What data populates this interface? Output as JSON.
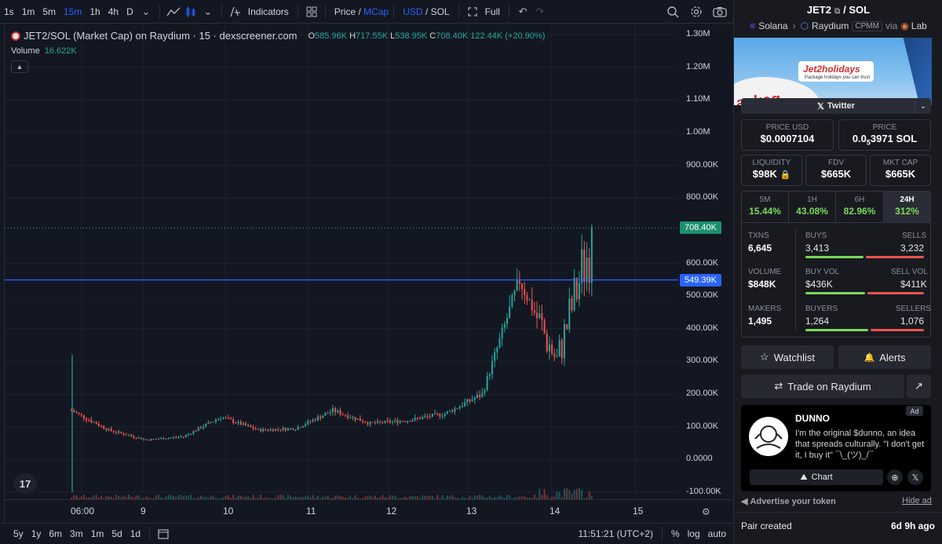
{
  "toolbar": {
    "timeframes": [
      "1s",
      "1m",
      "5m",
      "15m",
      "1h",
      "4h",
      "D"
    ],
    "active_timeframe": "15m",
    "indicators_label": "Indicators",
    "price_label": "Price",
    "mcap_label": "MCap",
    "slash": "/",
    "usd_label": "USD",
    "sol_label": "SOL",
    "full_label": "Full"
  },
  "legend": {
    "title": "JET2/SOL (Market Cap) on Raydium · 15 · dexscreener.com",
    "o_key": "O",
    "o_val": "585.96K",
    "h_key": "H",
    "h_val": "717.55K",
    "l_key": "L",
    "l_val": "538.95K",
    "c_key": "C",
    "c_val": "708.40K",
    "change": "122.44K (+20.90%)",
    "volume_label": "Volume",
    "volume_val": "16.622K"
  },
  "price_axis": {
    "labels": [
      "1.30M",
      "1.20M",
      "1.10M",
      "1.00M",
      "900.00K",
      "800.00K",
      "600.00K",
      "500.00K",
      "400.00K",
      "300.00K",
      "200.00K",
      "100.00K",
      "0.0000",
      "-100.00K"
    ],
    "last_price_tag": "708.40K",
    "line_price_tag": "549.39K"
  },
  "time_axis": {
    "labels": [
      "06:00",
      "9",
      "10",
      "11",
      "12",
      "13",
      "14",
      "15"
    ]
  },
  "bottom_bar": {
    "ranges": [
      "5y",
      "1y",
      "6m",
      "3m",
      "1m",
      "5d",
      "1d"
    ],
    "clock": "11:51:21 (UTC+2)",
    "percent": "%",
    "log": "log",
    "auto": "auto"
  },
  "chart_data": {
    "type": "candlestick",
    "unit": "market cap (USD)",
    "x": [
      "06:00",
      "9",
      "10",
      "11",
      "12",
      "13",
      "14",
      "15"
    ],
    "ylim": [
      -100000,
      1300000
    ],
    "close_series": [
      {
        "t": "08:00",
        "v": 150000
      },
      {
        "t": "08:30",
        "v": 90000
      },
      {
        "t": "9",
        "v": 60000
      },
      {
        "t": "9.5",
        "v": 70000
      },
      {
        "t": "10",
        "v": 130000
      },
      {
        "t": "10.5",
        "v": 90000
      },
      {
        "t": "11",
        "v": 95000
      },
      {
        "t": "11.5",
        "v": 150000
      },
      {
        "t": "12",
        "v": 110000
      },
      {
        "t": "12.5",
        "v": 120000
      },
      {
        "t": "13",
        "v": 140000
      },
      {
        "t": "13.5",
        "v": 200000
      },
      {
        "t": "13.9",
        "v": 550000
      },
      {
        "t": "14.2",
        "v": 300000
      },
      {
        "t": "14.5",
        "v": 708400
      }
    ],
    "last_close": 708400,
    "horizontal_line": 549390
  },
  "panel": {
    "token": "JET2",
    "slash": "/",
    "quote": "SOL",
    "chain": "Solana",
    "dex": "Raydium",
    "pool_type": "CPMM",
    "via": "via",
    "lab": "Lab",
    "banner_text": "ackag",
    "banner_logo": "Jet2holidays",
    "banner_tagline": "Package holidays you can trust",
    "twitter": "Twitter",
    "price_usd_label": "PRICE USD",
    "price_usd": "$0.0007104",
    "price_label": "PRICE",
    "price_sol_prefix": "0.0",
    "price_sol_sub": "5",
    "price_sol_rest": "3971 SOL",
    "liquidity_label": "LIQUIDITY",
    "liquidity": "$98K",
    "fdv_label": "FDV",
    "fdv": "$665K",
    "mktcap_label": "MKT CAP",
    "mktcap": "$665K",
    "timeframes": [
      {
        "label": "5M",
        "value": "15.44%"
      },
      {
        "label": "1H",
        "value": "43.08%"
      },
      {
        "label": "6H",
        "value": "82.96%"
      },
      {
        "label": "24H",
        "value": "312%"
      }
    ],
    "txns_label": "TXNS",
    "txns": "6,645",
    "buys_label": "BUYS",
    "buys": "3,413",
    "sells_label": "SELLS",
    "sells": "3,232",
    "volume_label": "VOLUME",
    "volume": "$848K",
    "buy_vol_label": "BUY VOL",
    "buy_vol": "$436K",
    "sell_vol_label": "SELL VOL",
    "sell_vol": "$411K",
    "makers_label": "MAKERS",
    "makers": "1,495",
    "buyers_label": "BUYERS",
    "buyers": "1,264",
    "sellers_label": "SELLERS",
    "sellers": "1,076",
    "watchlist": "Watchlist",
    "alerts": "Alerts",
    "trade": "Trade on Raydium",
    "ad_badge": "Ad",
    "ad_title": "DUNNO",
    "ad_text": "I'm the original $dunno, an idea that spreads culturally. \"I don't get it, I buy it\" ¯\\_(ツ)_/¯",
    "ad_chart": "Chart",
    "advertise": "Advertise your token",
    "hide_ad": "Hide ad",
    "pair_created_label": "Pair created",
    "pair_created": "6d 9h ago"
  },
  "colors": {
    "up": "#26a69a",
    "down": "#ef5350",
    "accent": "#2962ff",
    "green_text": "#7ad95b"
  }
}
